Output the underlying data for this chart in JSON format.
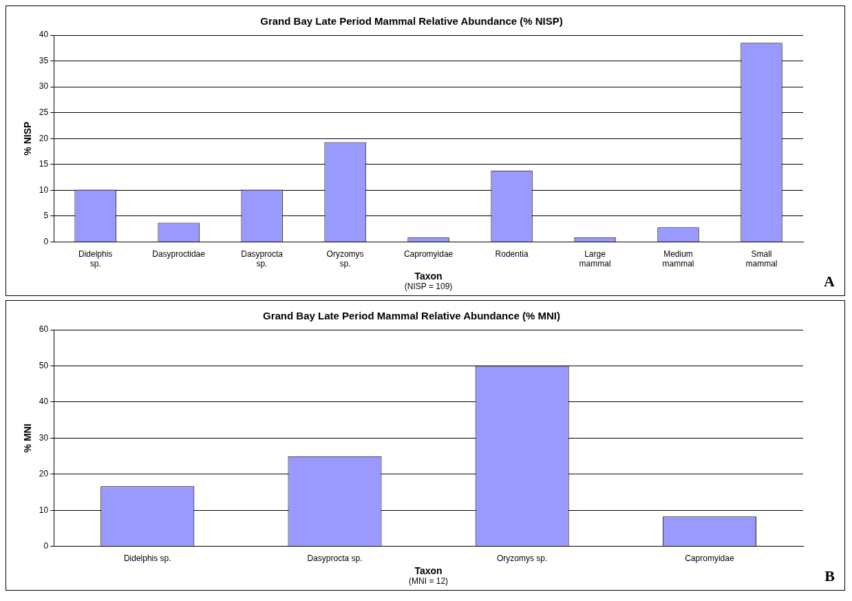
{
  "chart_data": [
    {
      "type": "bar",
      "title": "Grand Bay Late Period Mammal Relative Abundance (% NISP)",
      "xlabel": "Taxon",
      "ylabel": "% NISP",
      "categories": [
        "Didelphis sp.",
        "Dasyproctidae",
        "Dasyprocta sp.",
        "Oryzomys sp.",
        "Capromyidae",
        "Rodentia",
        "Large mammal",
        "Medium mammal",
        "Small mammal"
      ],
      "values": [
        10.1,
        3.7,
        10.1,
        19.3,
        0.9,
        13.8,
        0.9,
        2.8,
        38.5
      ],
      "color": "#9999ff",
      "ylim": [
        0,
        40
      ],
      "yticks": [
        0,
        5,
        10,
        15,
        20,
        25,
        30,
        35,
        40
      ],
      "grid": "y",
      "legend": false,
      "annotations": [
        "(NISP = 109)",
        "A"
      ]
    },
    {
      "type": "bar",
      "title": "Grand Bay Late Period Mammal Relative Abundance (% MNI)",
      "xlabel": "Taxon",
      "ylabel": "% MNI",
      "categories": [
        "Didelphis sp.",
        "Dasyprocta sp.",
        "Oryzomys sp.",
        "Capromyidae"
      ],
      "values": [
        16.7,
        25,
        50,
        8.3
      ],
      "color": "#9999ff",
      "ylim": [
        0,
        60
      ],
      "yticks": [
        0,
        10,
        20,
        30,
        40,
        50,
        60
      ],
      "grid": "y",
      "legend": false,
      "annotations": [
        "(MNI = 12)",
        "B"
      ]
    }
  ]
}
